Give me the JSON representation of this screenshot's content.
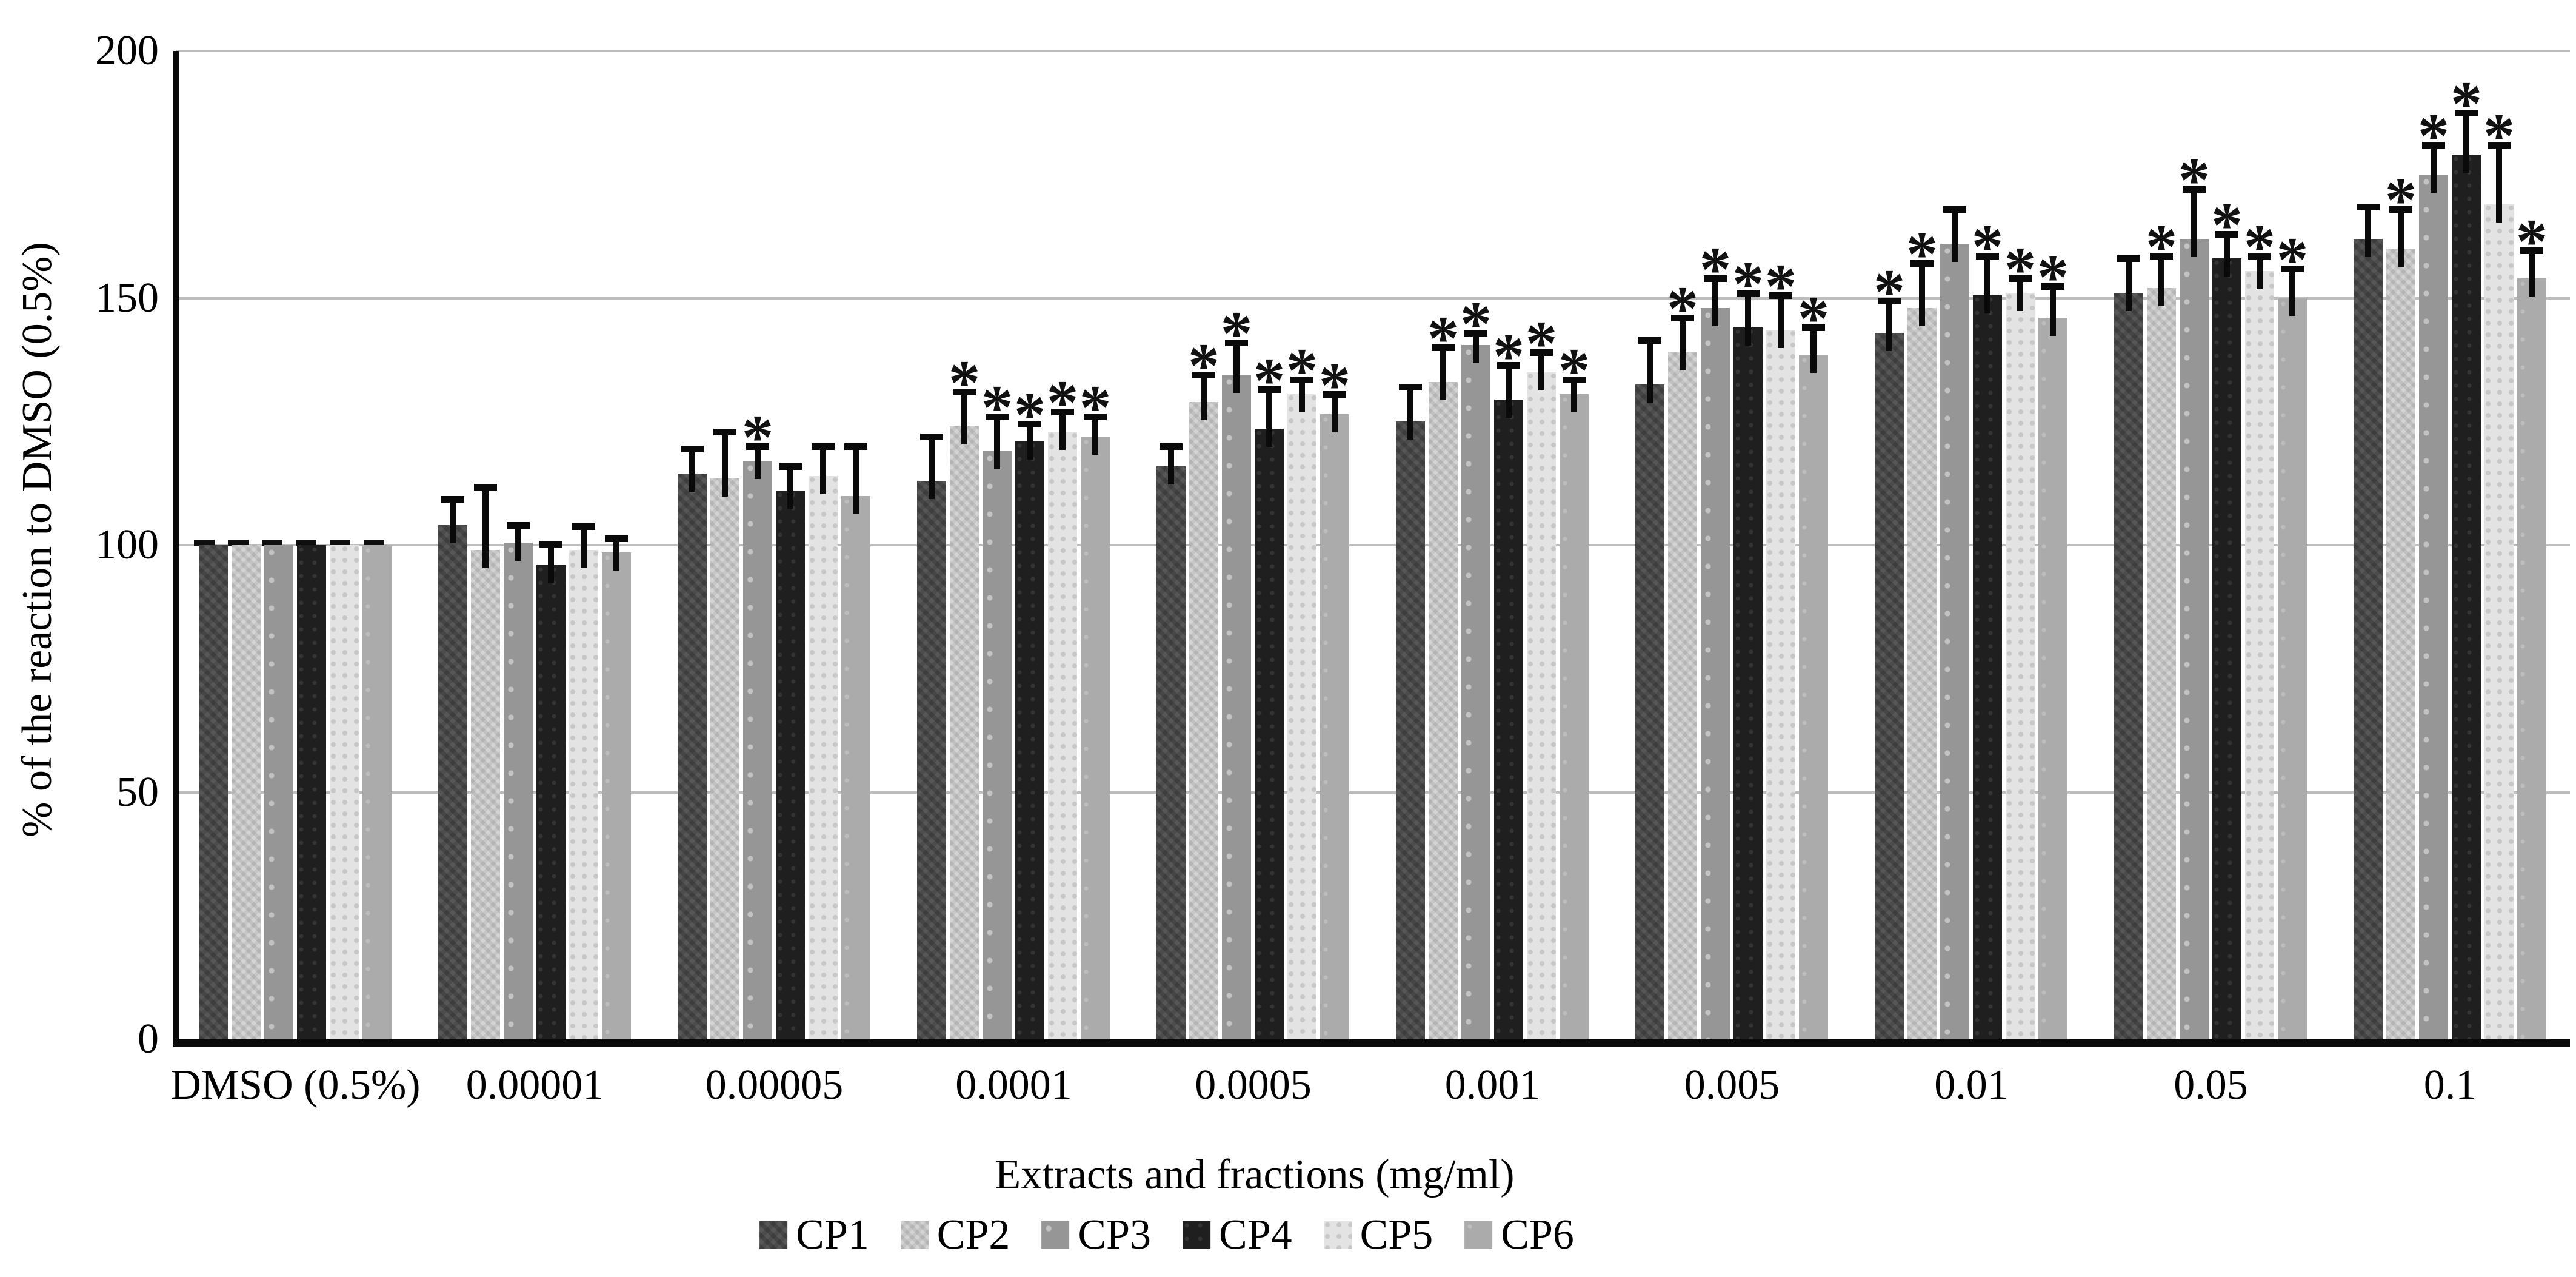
{
  "chart_data": {
    "type": "bar",
    "title": "",
    "xlabel": "Extracts and fractions (mg/ml)",
    "ylabel": "% of the reaction to DMSO (0.5%)",
    "ylim": [
      0,
      200
    ],
    "ytick_labels": [
      "0",
      "50",
      "100",
      "150",
      "200"
    ],
    "yticks": [
      0,
      50,
      100,
      150,
      200
    ],
    "grid": true,
    "legend_position": "bottom",
    "significance_marker": "*",
    "reference_line": {
      "category": "DMSO (0.5%)",
      "value": 100,
      "style": "dashed-black"
    },
    "categories": [
      "DMSO (0.5%)",
      "0.00001",
      "0.00005",
      "0.0001",
      "0.0005",
      "0.001",
      "0.005",
      "0.01",
      "0.05",
      "0.1"
    ],
    "series": [
      {
        "name": "CP1",
        "color": "#575757",
        "values": [
          100,
          104,
          114.5,
          113,
          116,
          125,
          132.5,
          143,
          151,
          162
        ],
        "errors": [
          0,
          5.3,
          5,
          9,
          4,
          7,
          9,
          6.5,
          7,
          6.5
        ],
        "significant": [
          0,
          0,
          0,
          0,
          0,
          0,
          0,
          1,
          0,
          0
        ]
      },
      {
        "name": "CP2",
        "color": "#c6c6c6",
        "values": [
          100,
          99,
          113.5,
          124,
          129,
          133,
          139,
          148,
          152,
          160
        ],
        "errors": [
          0,
          12.8,
          9.5,
          7,
          5.5,
          7,
          7,
          9,
          6.5,
          8
        ],
        "significant": [
          0,
          0,
          0,
          1,
          1,
          1,
          1,
          1,
          1,
          1
        ]
      },
      {
        "name": "CP3",
        "color": "#969696",
        "values": [
          100,
          100.5,
          117,
          119,
          134.5,
          140.5,
          148,
          161,
          162,
          175
        ],
        "errors": [
          0,
          3.5,
          3,
          7,
          6.5,
          2.5,
          6,
          7,
          10,
          6
        ],
        "significant": [
          0,
          0,
          1,
          1,
          1,
          1,
          1,
          0,
          1,
          1
        ]
      },
      {
        "name": "CP4",
        "color": "#1f1f1f",
        "values": [
          100,
          96,
          111,
          121,
          123.5,
          129.5,
          144,
          150.5,
          158,
          179
        ],
        "errors": [
          0,
          4.3,
          5,
          3.5,
          8,
          7,
          7,
          8,
          5,
          8.5
        ],
        "significant": [
          0,
          0,
          0,
          1,
          1,
          1,
          1,
          1,
          1,
          1
        ]
      },
      {
        "name": "CP5",
        "color": "#e3e3e3",
        "values": [
          100,
          99,
          114,
          123,
          130.5,
          135,
          143.5,
          151,
          155.5,
          169
        ],
        "errors": [
          0,
          4.8,
          6,
          4,
          3,
          4,
          7,
          3,
          3,
          12
        ],
        "significant": [
          0,
          0,
          0,
          1,
          1,
          1,
          1,
          1,
          1,
          1
        ]
      },
      {
        "name": "CP6",
        "color": "#ababab",
        "values": [
          100,
          98.5,
          110,
          122,
          126.5,
          130.5,
          138.5,
          146,
          150,
          154
        ],
        "errors": [
          0,
          2.8,
          10,
          4,
          4,
          3,
          5.5,
          6.4,
          6,
          5.6
        ],
        "significant": [
          0,
          0,
          0,
          1,
          1,
          1,
          1,
          1,
          1,
          1
        ]
      }
    ]
  }
}
